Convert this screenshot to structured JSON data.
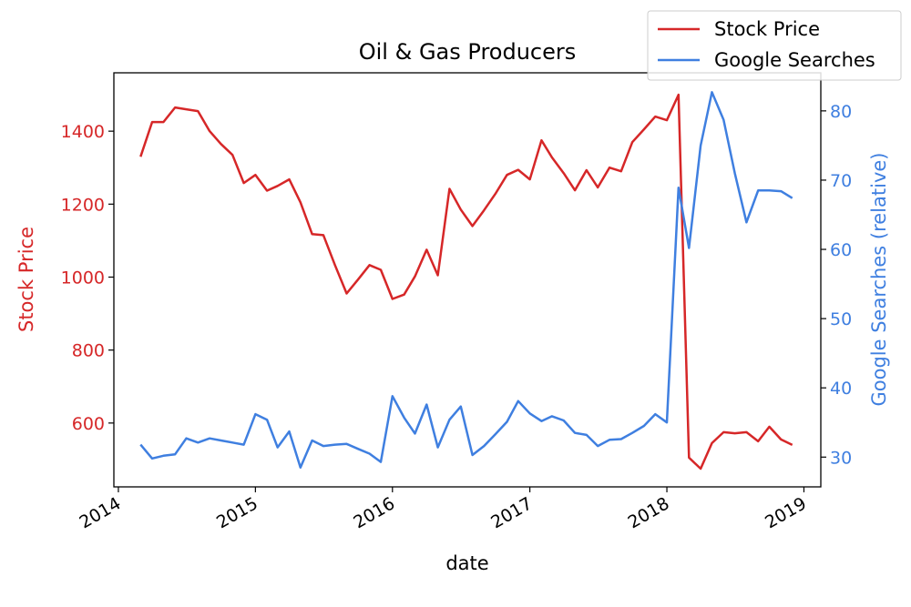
{
  "chart_data": {
    "type": "line",
    "title": "Oil & Gas Producers",
    "xlabel": "date",
    "ylabel_left": "Stock Price",
    "ylabel_right": "Google Searches (relative)",
    "x_tick_labels": [
      "2014",
      "2015",
      "2016",
      "2017",
      "2018",
      "2019"
    ],
    "y_left_ticks": [
      600,
      800,
      1000,
      1200,
      1400
    ],
    "y_right_ticks": [
      30,
      40,
      50,
      60,
      70,
      80
    ],
    "y_left_lim": [
      425,
      1560
    ],
    "y_right_lim": [
      25.7,
      85.5
    ],
    "x_lim": [
      "2013-12-20",
      "2019-02-15"
    ],
    "grid": false,
    "legend_position": "top-right",
    "colors": {
      "stock": "#d62728",
      "searches": "#3f7fe0"
    },
    "series": [
      {
        "name": "Stock Price",
        "axis": "left",
        "x": [
          "2014-03-01",
          "2014-04-01",
          "2014-05-01",
          "2014-06-01",
          "2014-07-01",
          "2014-08-01",
          "2014-09-01",
          "2014-10-01",
          "2014-11-01",
          "2014-12-01",
          "2015-01-01",
          "2015-02-01",
          "2015-03-01",
          "2015-04-01",
          "2015-05-01",
          "2015-06-01",
          "2015-07-01",
          "2015-08-01",
          "2015-09-01",
          "2015-10-01",
          "2015-11-01",
          "2015-12-01",
          "2016-01-01",
          "2016-02-01",
          "2016-03-01",
          "2016-04-01",
          "2016-05-01",
          "2016-06-01",
          "2016-07-01",
          "2016-08-01",
          "2016-09-01",
          "2016-10-01",
          "2016-11-01",
          "2016-12-01",
          "2017-01-01",
          "2017-02-01",
          "2017-03-01",
          "2017-04-01",
          "2017-05-01",
          "2017-06-01",
          "2017-07-01",
          "2017-08-01",
          "2017-09-01",
          "2017-10-01",
          "2017-11-01",
          "2017-12-01",
          "2018-01-01",
          "2018-02-01",
          "2018-03-01",
          "2018-04-01",
          "2018-05-01",
          "2018-06-01",
          "2018-07-01",
          "2018-08-01",
          "2018-09-01",
          "2018-10-01",
          "2018-11-01",
          "2018-12-01"
        ],
        "values": [
          1330,
          1425,
          1425,
          1465,
          1460,
          1455,
          1400,
          1365,
          1335,
          1258,
          1280,
          1237,
          1250,
          1268,
          1205,
          1118,
          1115,
          1033,
          955,
          993,
          1033,
          1020,
          940,
          952,
          1002,
          1075,
          1005,
          1242,
          1185,
          1140,
          1183,
          1228,
          1280,
          1294,
          1268,
          1375,
          1328,
          1285,
          1238,
          1293,
          1246,
          1300,
          1290,
          1370,
          1405,
          1440,
          1430,
          1500,
          505,
          475,
          545,
          575,
          572,
          575,
          550,
          590,
          555,
          540
        ]
      },
      {
        "name": "Google Searches",
        "axis": "right",
        "x": [
          "2014-03-01",
          "2014-04-01",
          "2014-05-01",
          "2014-06-01",
          "2014-07-01",
          "2014-08-01",
          "2014-09-01",
          "2014-10-01",
          "2014-11-01",
          "2014-12-01",
          "2015-01-01",
          "2015-02-01",
          "2015-03-01",
          "2015-04-01",
          "2015-05-01",
          "2015-06-01",
          "2015-07-01",
          "2015-08-01",
          "2015-09-01",
          "2015-10-01",
          "2015-11-01",
          "2015-12-01",
          "2016-01-01",
          "2016-02-01",
          "2016-03-01",
          "2016-04-01",
          "2016-05-01",
          "2016-06-01",
          "2016-07-01",
          "2016-08-01",
          "2016-09-01",
          "2016-10-01",
          "2016-11-01",
          "2016-12-01",
          "2017-01-01",
          "2017-02-01",
          "2017-03-01",
          "2017-04-01",
          "2017-05-01",
          "2017-06-01",
          "2017-07-01",
          "2017-08-01",
          "2017-09-01",
          "2017-10-01",
          "2017-11-01",
          "2017-12-01",
          "2018-01-01",
          "2018-02-01",
          "2018-03-01",
          "2018-04-01",
          "2018-05-01",
          "2018-06-01",
          "2018-07-01",
          "2018-08-01",
          "2018-09-01",
          "2018-10-01",
          "2018-11-01",
          "2018-12-01"
        ],
        "values": [
          31.8,
          29.8,
          30.2,
          30.4,
          32.7,
          32.1,
          32.7,
          32.4,
          32.1,
          31.8,
          36.2,
          35.4,
          31.4,
          33.7,
          28.5,
          32.4,
          31.6,
          31.8,
          31.9,
          31.2,
          30.5,
          29.3,
          38.8,
          35.7,
          33.4,
          37.6,
          31.4,
          35.4,
          37.3,
          30.3,
          31.6,
          33.3,
          35.1,
          38.1,
          36.3,
          35.2,
          35.9,
          35.3,
          33.5,
          33.2,
          31.6,
          32.5,
          32.6,
          33.5,
          34.5,
          36.2,
          35.0,
          68.9,
          60.2,
          75.0,
          82.7,
          78.7,
          71.0,
          63.9,
          68.5,
          68.5,
          68.4,
          67.4
        ]
      }
    ]
  }
}
